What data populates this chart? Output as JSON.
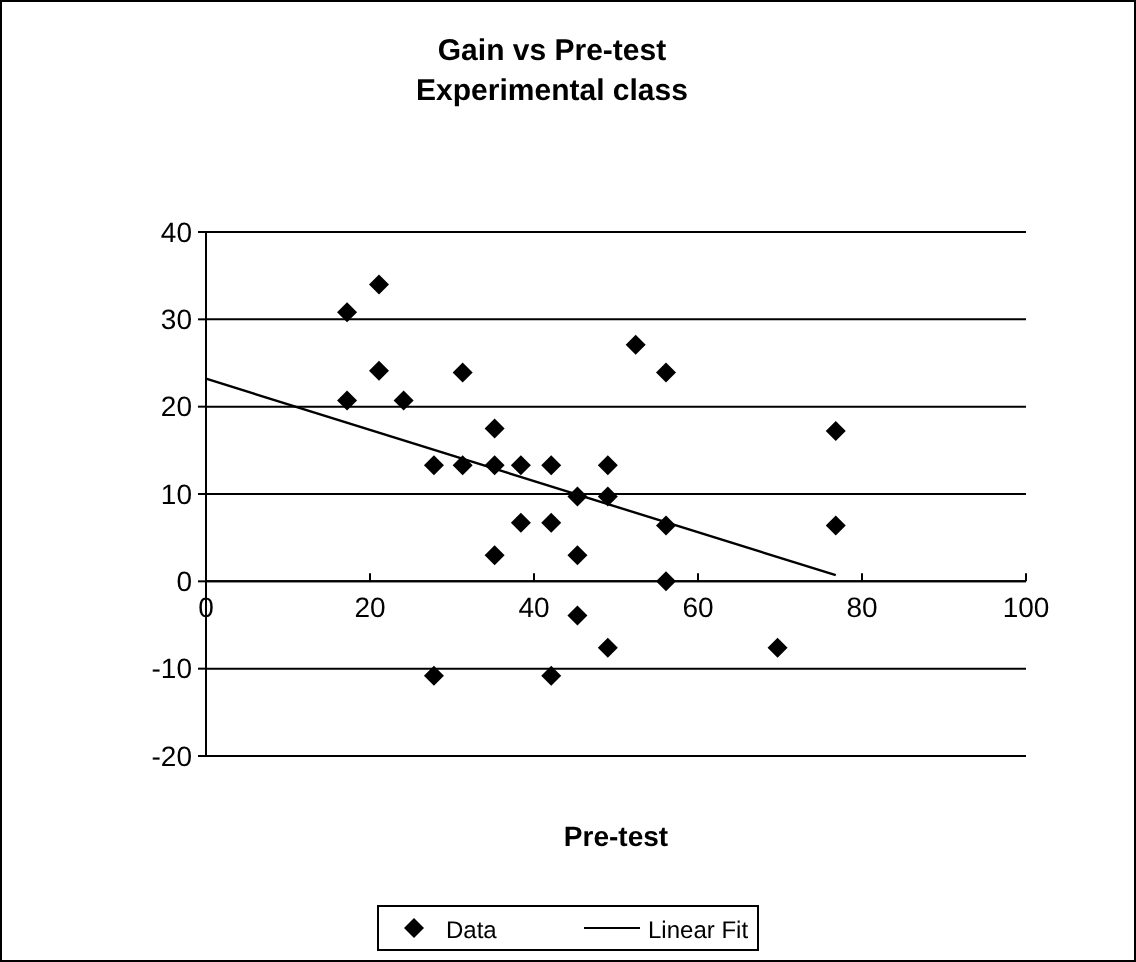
{
  "chart_data": {
    "type": "scatter",
    "title": "Gain vs Pre-test\nExperimental class",
    "xlabel": "Pre-test",
    "xlim": [
      0,
      100
    ],
    "xticks": [
      0,
      20,
      40,
      60,
      80,
      100
    ],
    "ylim": [
      -20,
      40
    ],
    "yticks": [
      -20,
      -10,
      0,
      10,
      20,
      30,
      40
    ],
    "grid": "y",
    "legend": "bottom",
    "series": [
      {
        "name": "Data",
        "marker": "diamond",
        "color": "#000000",
        "x": [
          17.2,
          21.1,
          21.1,
          17.2,
          24.1,
          31.3,
          35.2,
          27.8,
          31.3,
          35.2,
          38.4,
          42.1,
          45.3,
          38.4,
          42.1,
          35.2,
          45.3,
          45.3,
          27.8,
          42.1,
          49,
          49,
          49,
          52.4,
          56.1,
          56.1,
          56.1,
          69.7,
          76.8,
          76.8
        ],
        "values": [
          30.8,
          34,
          24.1,
          20.7,
          20.7,
          23.9,
          17.5,
          13.3,
          13.3,
          13.3,
          13.3,
          13.3,
          9.7,
          6.7,
          6.7,
          3,
          3,
          -3.9,
          -10.8,
          -10.8,
          13.3,
          9.7,
          -7.6,
          27.1,
          23.9,
          6.4,
          0,
          -7.6,
          17.2,
          6.4
        ]
      },
      {
        "name": "Linear Fit",
        "type": "line",
        "marker": "none",
        "line_style": "solid",
        "color": "#000000",
        "x": [
          0,
          76.8
        ],
        "values": [
          23.2,
          0.7
        ]
      }
    ]
  }
}
